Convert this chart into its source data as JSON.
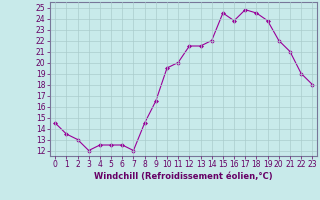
{
  "x": [
    0,
    1,
    2,
    3,
    4,
    5,
    6,
    7,
    8,
    9,
    10,
    11,
    12,
    13,
    14,
    15,
    16,
    17,
    18,
    19,
    20,
    21,
    22,
    23
  ],
  "y": [
    14.5,
    13.5,
    13.0,
    12.0,
    12.5,
    12.5,
    12.5,
    12.0,
    14.5,
    16.5,
    19.5,
    20.0,
    21.5,
    21.5,
    22.0,
    24.5,
    23.8,
    24.8,
    24.5,
    23.8,
    22.0,
    21.0,
    19.0,
    18.0
  ],
  "line_color": "#990099",
  "marker": "D",
  "marker_size": 2,
  "bg_color": "#c8eaea",
  "grid_color": "#aacccc",
  "xlabel": "Windchill (Refroidissement éolien,°C)",
  "xlabel_color": "#660066",
  "ylabel_ticks": [
    12,
    13,
    14,
    15,
    16,
    17,
    18,
    19,
    20,
    21,
    22,
    23,
    24,
    25
  ],
  "xlim": [
    -0.5,
    23.4
  ],
  "ylim": [
    11.5,
    25.5
  ],
  "tick_color": "#660066",
  "font_color": "#660066",
  "tick_fontsize": 5.5,
  "xlabel_fontsize": 6.0,
  "linewidth": 0.8
}
